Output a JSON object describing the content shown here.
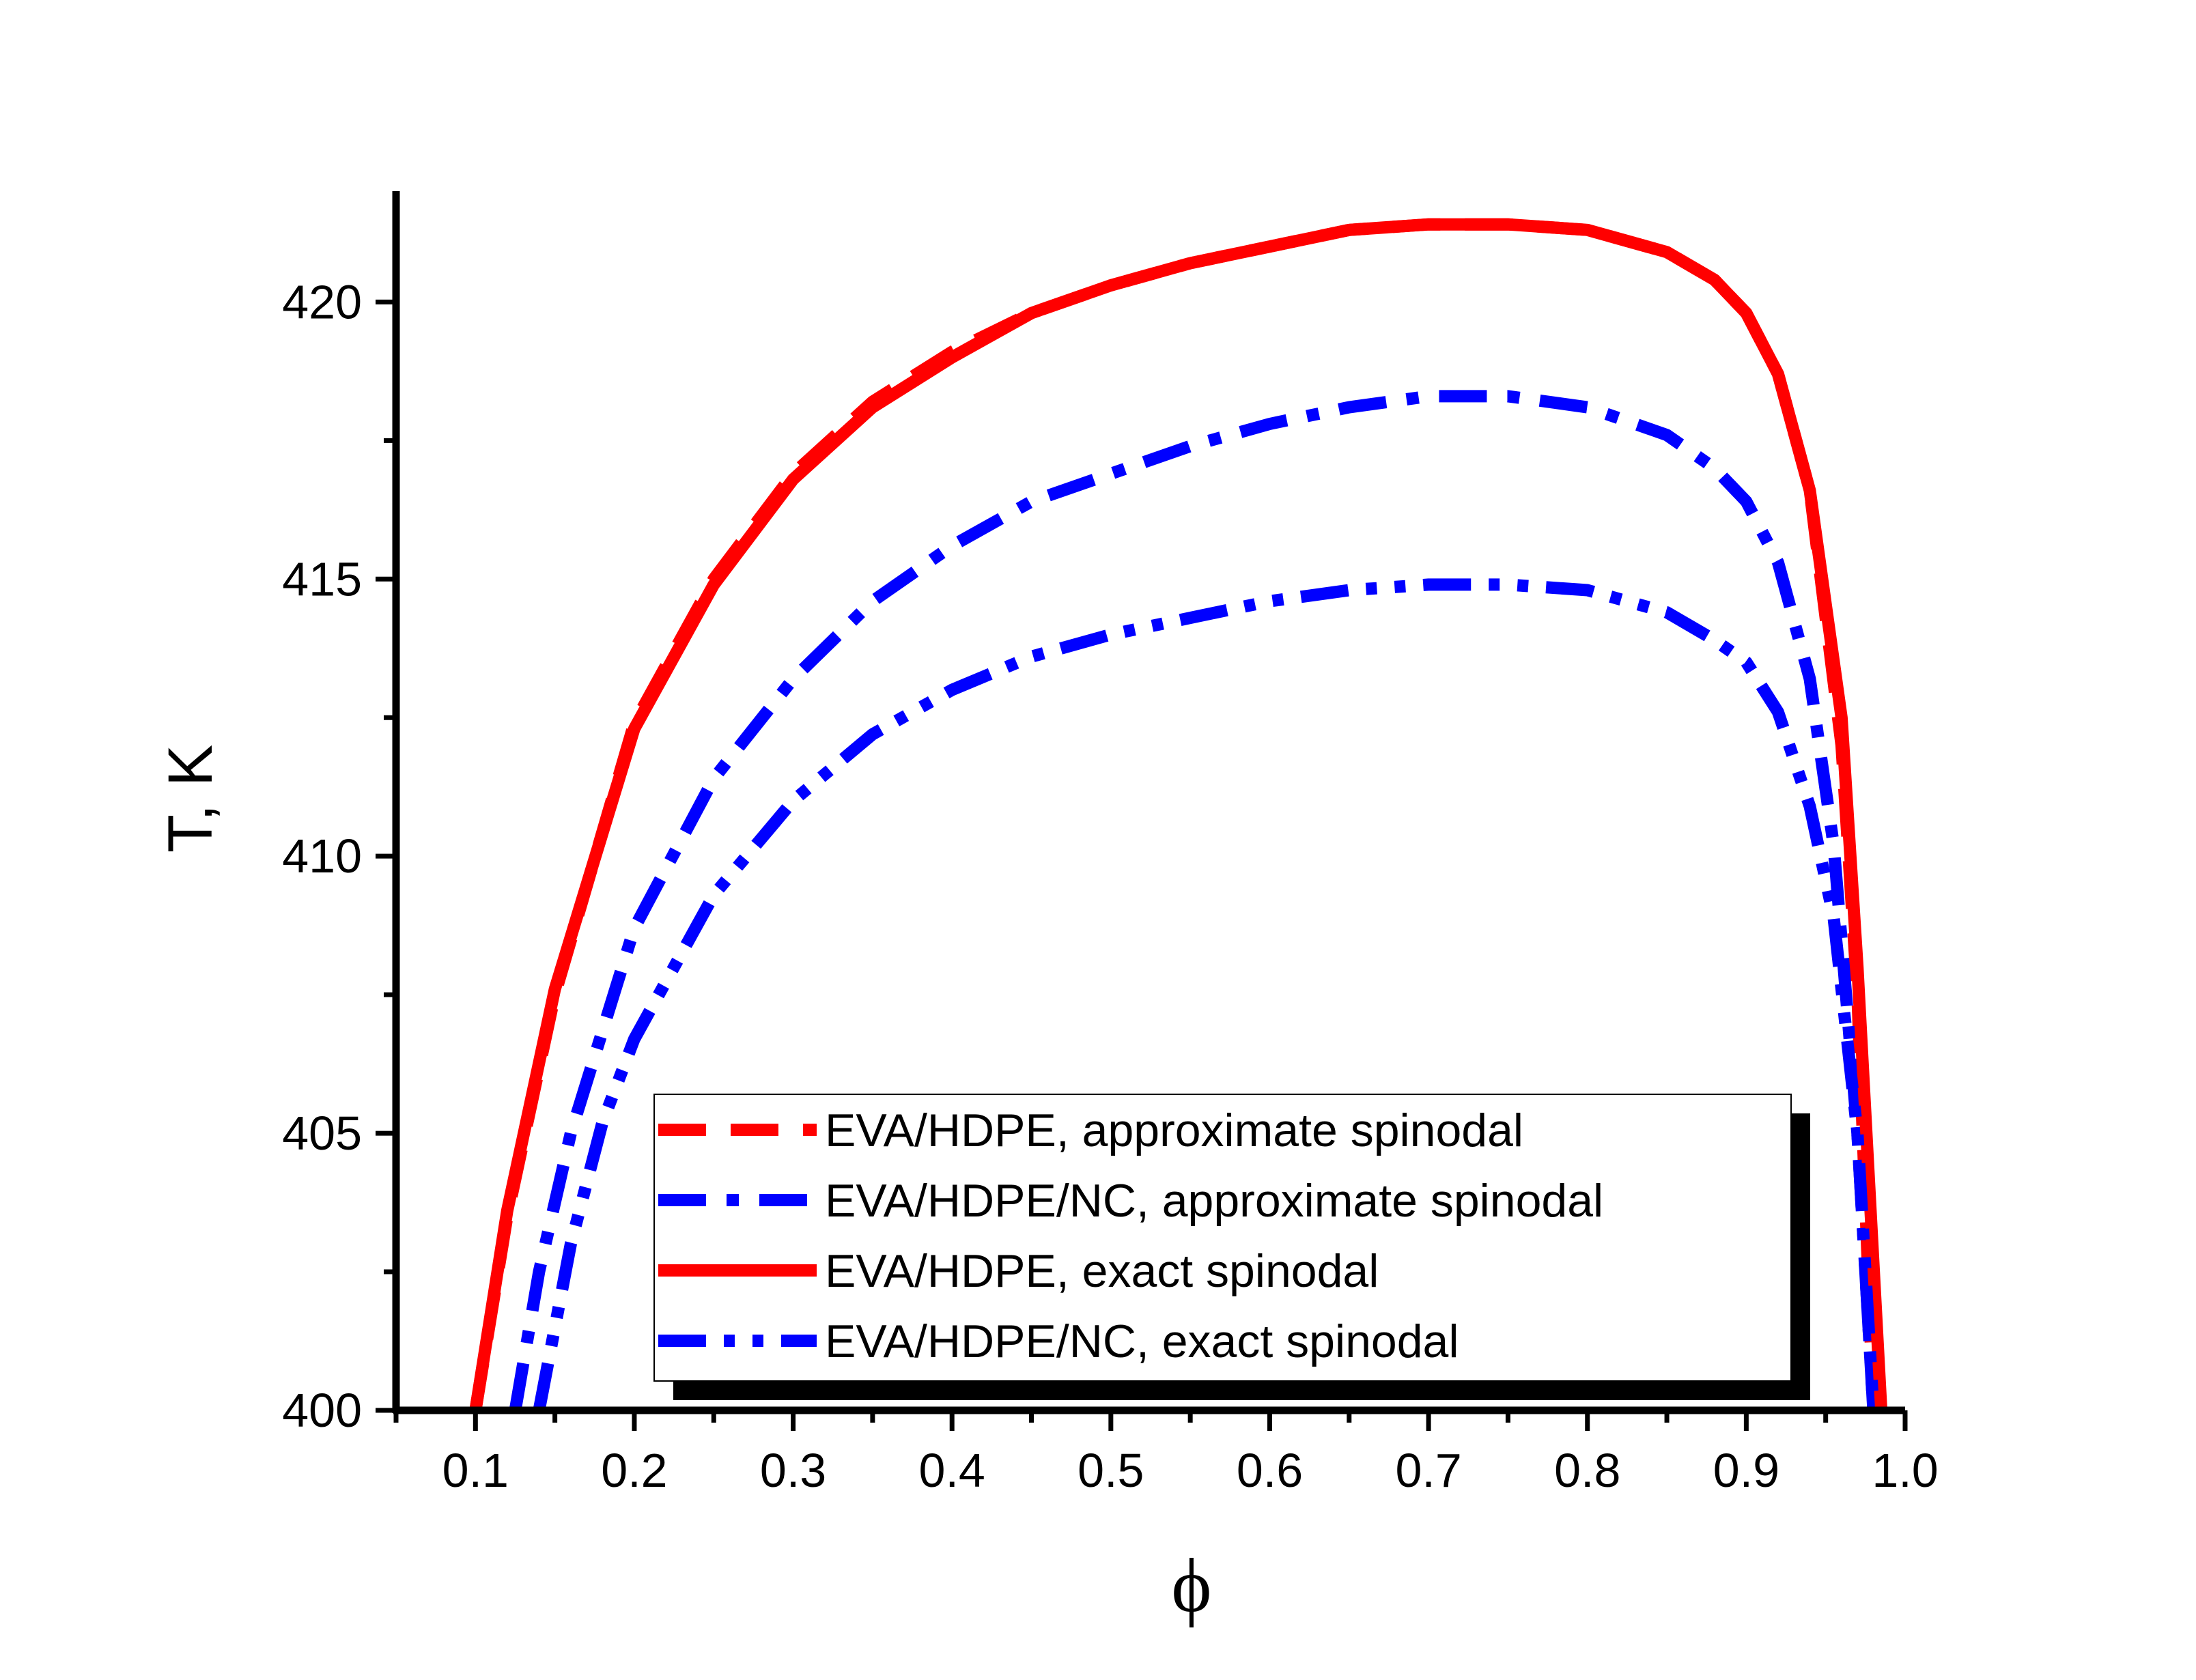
{
  "chart_data": {
    "type": "line",
    "title": "",
    "xlabel": "ϕ",
    "ylabel": "T, K",
    "xlim": [
      0.05,
      1.0
    ],
    "ylim": [
      400,
      422
    ],
    "x_ticks": [
      0.1,
      0.2,
      0.3,
      0.4,
      0.5,
      0.6,
      0.7,
      0.8,
      0.9,
      1.0
    ],
    "x_tick_labels": [
      "0.1",
      "0.2",
      "0.3",
      "0.4",
      "0.5",
      "0.6",
      "0.7",
      "0.8",
      "0.9",
      "1.0"
    ],
    "y_ticks": [
      400,
      405,
      410,
      415,
      420
    ],
    "y_tick_labels": [
      "400",
      "405",
      "410",
      "415",
      "420"
    ],
    "grid": false,
    "legend_position": "bottom-center",
    "series": [
      {
        "name": "EVA/HDPE, approximate spinodal",
        "color": "#ff0000",
        "style": "dash",
        "x": [
          0.1,
          0.12,
          0.15,
          0.2,
          0.25,
          0.3,
          0.35,
          0.4,
          0.45,
          0.5,
          0.55,
          0.6,
          0.65,
          0.7,
          0.75,
          0.8,
          0.85,
          0.88,
          0.9,
          0.92,
          0.94,
          0.96,
          0.97,
          0.98
        ],
        "y": [
          400.0,
          403.5,
          407.5,
          412.4,
          415.0,
          416.9,
          418.2,
          419.1,
          419.8,
          420.3,
          420.7,
          421.0,
          421.3,
          421.4,
          421.4,
          421.3,
          420.9,
          420.4,
          419.8,
          418.7,
          416.6,
          412.0,
          407.5,
          400.0
        ]
      },
      {
        "name": "EVA/HDPE/NC, approximate spinodal",
        "color": "#0000ff",
        "style": "dashdot",
        "x": [
          0.125,
          0.14,
          0.16,
          0.2,
          0.25,
          0.3,
          0.35,
          0.4,
          0.45,
          0.5,
          0.55,
          0.6,
          0.65,
          0.7,
          0.75,
          0.8,
          0.85,
          0.88,
          0.9,
          0.92,
          0.94,
          0.955,
          0.97,
          0.98
        ],
        "y": [
          400.0,
          402.5,
          405.0,
          408.7,
          411.4,
          413.2,
          414.6,
          415.6,
          416.4,
          416.9,
          417.4,
          417.8,
          418.1,
          418.3,
          418.3,
          418.1,
          417.6,
          417.0,
          416.4,
          415.3,
          413.2,
          410.2,
          405.0,
          400.0
        ]
      },
      {
        "name": "EVA/HDPE, exact spinodal",
        "color": "#ff0000",
        "style": "solid",
        "x": [
          0.1,
          0.12,
          0.15,
          0.2,
          0.25,
          0.3,
          0.35,
          0.4,
          0.45,
          0.5,
          0.55,
          0.6,
          0.65,
          0.7,
          0.75,
          0.8,
          0.85,
          0.88,
          0.9,
          0.92,
          0.94,
          0.96,
          0.97,
          0.985
        ],
        "y": [
          400.0,
          403.6,
          407.6,
          412.3,
          414.9,
          416.8,
          418.1,
          419.0,
          419.8,
          420.3,
          420.7,
          421.0,
          421.3,
          421.4,
          421.4,
          421.3,
          420.9,
          420.4,
          419.8,
          418.7,
          416.6,
          412.5,
          408.0,
          400.0
        ]
      },
      {
        "name": "EVA/HDPE/NC, exact spinodal",
        "color": "#0000ff",
        "style": "dashdotdot",
        "x": [
          0.14,
          0.16,
          0.18,
          0.2,
          0.25,
          0.3,
          0.35,
          0.4,
          0.45,
          0.5,
          0.55,
          0.6,
          0.65,
          0.7,
          0.75,
          0.8,
          0.85,
          0.88,
          0.9,
          0.92,
          0.94,
          0.955,
          0.97,
          0.98
        ],
        "y": [
          400.0,
          403.0,
          405.2,
          406.7,
          409.3,
          411.0,
          412.2,
          413.0,
          413.6,
          414.0,
          414.3,
          414.6,
          414.8,
          414.9,
          414.9,
          414.8,
          414.4,
          413.9,
          413.5,
          412.6,
          410.9,
          408.9,
          405.0,
          400.0
        ]
      }
    ]
  }
}
